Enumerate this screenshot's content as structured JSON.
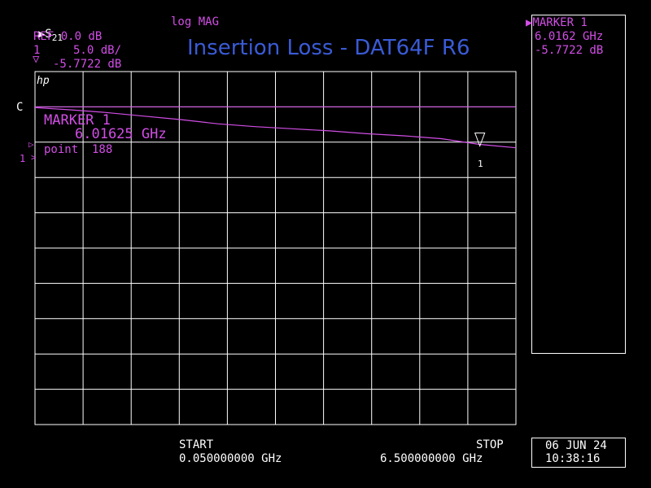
{
  "header": {
    "channel_marker": "▶",
    "param": "S",
    "param_sub": "21",
    "format": "log MAG",
    "ref": "REF 0.0 dB",
    "scale_index": "1",
    "scale": "5.0 dB/",
    "marker_readout": "-5.7722 dB",
    "hp_logo": "hp",
    "c_label": "C",
    "ref_line_label": "1"
  },
  "title": "Insertion Loss - DAT64F R6",
  "marker_box": {
    "title": "▶MARKER 1",
    "freq": "6.0162 GHz",
    "value": "-5.7722 dB"
  },
  "plot_annotation": {
    "line1": "MARKER 1",
    "line2": "6.01625 GHz",
    "line3": "point  188",
    "marker_tag": "1"
  },
  "footer": {
    "start_label": "START",
    "start_value": "0.050000000 GHz",
    "stop_label": "STOP",
    "stop_value": "6.500000000 GHz",
    "date": "06 JUN 24",
    "time": "10:38:16"
  },
  "colors": {
    "trace": "#d24ee6",
    "grid": "#ffffff",
    "title": "#3a5bd6"
  },
  "chart_data": {
    "type": "line",
    "title": "Insertion Loss - DAT64F R6",
    "xlabel": "",
    "ylabel": "",
    "x_unit": "GHz",
    "y_unit": "dB",
    "xlim": [
      0.05,
      6.5
    ],
    "ylim": [
      -45.0,
      5.0
    ],
    "ref_value": 0.0,
    "scale_per_div": 5.0,
    "grid": true,
    "series": [
      {
        "x": [
          0.05,
          0.5,
          1.0,
          1.5,
          2.0,
          2.5,
          3.0,
          3.5,
          4.0,
          4.5,
          5.0,
          5.5,
          6.0,
          6.2,
          6.5
        ],
        "y": [
          -0.1,
          -0.4,
          -0.8,
          -1.3,
          -1.8,
          -2.4,
          -2.8,
          -3.1,
          -3.4,
          -3.8,
          -4.1,
          -4.5,
          -5.3,
          -5.5,
          -5.8
        ]
      }
    ],
    "marker": {
      "x": 6.01625,
      "y": -5.7722,
      "label": "1"
    }
  }
}
